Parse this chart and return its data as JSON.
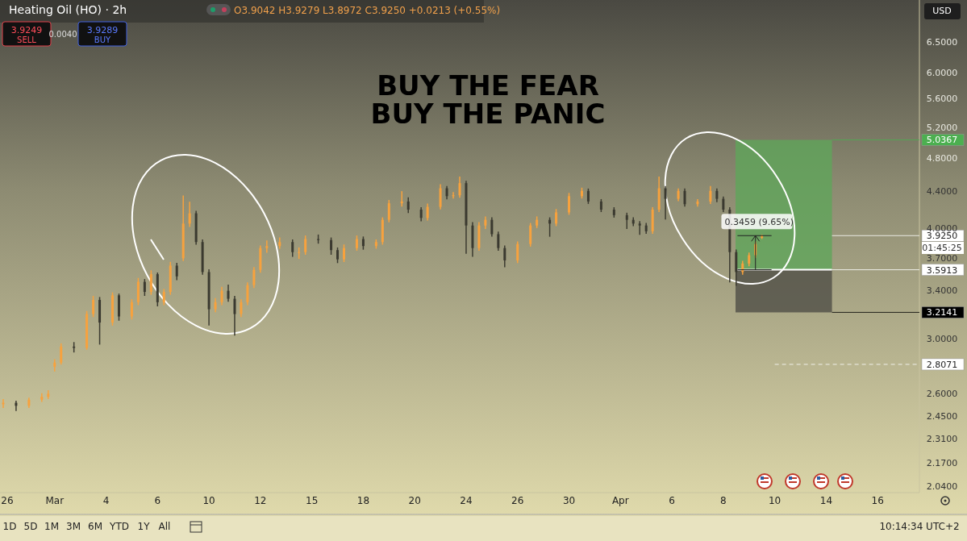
{
  "chart_data": {
    "type": "candlestick",
    "title": "Heating Oil (HO) · 2h",
    "log": true,
    "categories": [
      "26",
      null,
      null,
      null,
      null,
      null,
      null,
      null,
      "Mar",
      null,
      null,
      null,
      null,
      null,
      null,
      null,
      "4",
      null,
      null,
      null,
      null,
      null,
      null,
      null,
      "6",
      null,
      null,
      null,
      null,
      null,
      null,
      null,
      "10",
      null,
      null,
      null,
      null,
      null,
      null,
      null,
      "12",
      null,
      null,
      null,
      null,
      null,
      null,
      null,
      "15",
      null,
      null,
      null,
      null,
      null,
      null,
      null,
      "18",
      null,
      null,
      null,
      null,
      null,
      null,
      null,
      "20",
      null,
      null,
      null,
      null,
      null,
      null,
      null,
      "24",
      null,
      null,
      null,
      null,
      null,
      null,
      null,
      "26",
      null,
      null,
      null,
      null,
      null,
      null,
      null,
      "30",
      null,
      null,
      null,
      null,
      null,
      null,
      null,
      "Apr",
      null,
      null,
      null,
      null,
      null,
      null,
      null,
      "6",
      null,
      null,
      null,
      null,
      null,
      null,
      null,
      "8",
      null,
      null,
      null,
      null,
      null,
      null,
      null,
      "10",
      null,
      null,
      null,
      null,
      null,
      null,
      null,
      "14",
      null,
      null,
      null,
      null,
      null,
      null,
      null,
      "16",
      null,
      null,
      null,
      null,
      null,
      null
    ],
    "ohlc": [
      [
        2.53,
        2.56,
        2.51,
        2.54
      ],
      null,
      [
        2.54,
        2.55,
        2.49,
        2.52
      ],
      null,
      [
        2.52,
        2.57,
        2.51,
        2.56
      ],
      null,
      [
        2.56,
        2.6,
        2.55,
        2.58
      ],
      [
        2.58,
        2.62,
        2.57,
        2.6
      ],
      [
        2.79,
        2.84,
        2.76,
        2.82
      ],
      [
        2.82,
        2.96,
        2.81,
        2.94
      ],
      null,
      [
        2.94,
        2.97,
        2.9,
        2.93
      ],
      null,
      [
        2.93,
        3.22,
        2.92,
        3.2
      ],
      [
        3.2,
        3.35,
        3.18,
        3.32
      ],
      [
        3.32,
        3.34,
        2.96,
        3.13
      ],
      null,
      [
        3.13,
        3.38,
        3.11,
        3.36
      ],
      [
        3.36,
        3.37,
        3.15,
        3.18
      ],
      null,
      [
        3.18,
        3.32,
        3.16,
        3.3
      ],
      [
        3.3,
        3.51,
        3.28,
        3.48
      ],
      [
        3.48,
        3.5,
        3.36,
        3.39
      ],
      [
        3.39,
        3.58,
        3.37,
        3.55
      ],
      [
        3.55,
        3.56,
        3.27,
        3.3
      ],
      [
        3.3,
        3.41,
        3.28,
        3.39
      ],
      [
        3.39,
        3.66,
        3.37,
        3.63
      ],
      [
        3.63,
        3.65,
        3.5,
        3.53
      ],
      [
        3.7,
        4.35,
        3.68,
        4.05
      ],
      [
        4.05,
        4.28,
        4.02,
        4.16
      ],
      [
        4.16,
        4.18,
        3.84,
        3.86
      ],
      [
        3.86,
        3.88,
        3.55,
        3.57
      ],
      [
        3.57,
        3.59,
        3.11,
        3.24
      ],
      [
        3.24,
        3.33,
        3.22,
        3.3
      ],
      [
        3.3,
        3.43,
        3.28,
        3.4
      ],
      [
        3.4,
        3.45,
        3.31,
        3.33
      ],
      [
        3.33,
        3.35,
        3.03,
        3.2
      ],
      [
        3.2,
        3.32,
        3.18,
        3.3
      ],
      [
        3.3,
        3.47,
        3.28,
        3.45
      ],
      [
        3.45,
        3.61,
        3.43,
        3.59
      ],
      [
        3.59,
        3.82,
        3.57,
        3.8
      ],
      [
        3.8,
        3.87,
        3.76,
        3.82
      ],
      null,
      [
        3.82,
        3.9,
        3.8,
        3.86
      ],
      null,
      [
        3.86,
        3.88,
        3.72,
        3.76
      ],
      [
        3.76,
        3.8,
        3.7,
        3.76
      ],
      [
        3.76,
        3.92,
        3.74,
        3.89
      ],
      null,
      [
        3.89,
        3.93,
        3.85,
        3.88
      ],
      null,
      [
        3.88,
        3.9,
        3.74,
        3.78
      ],
      [
        3.78,
        3.8,
        3.66,
        3.69
      ],
      [
        3.69,
        3.83,
        3.67,
        3.8
      ],
      null,
      [
        3.8,
        3.92,
        3.78,
        3.89
      ],
      [
        3.89,
        3.91,
        3.79,
        3.82
      ],
      null,
      [
        3.82,
        3.88,
        3.8,
        3.86
      ],
      [
        3.86,
        4.11,
        3.84,
        4.09
      ],
      [
        4.09,
        4.3,
        4.07,
        4.27
      ],
      null,
      [
        4.27,
        4.4,
        4.24,
        4.29
      ],
      [
        4.29,
        4.33,
        4.17,
        4.2
      ],
      null,
      [
        4.2,
        4.22,
        4.08,
        4.11
      ],
      [
        4.11,
        4.26,
        4.09,
        4.23
      ],
      null,
      [
        4.23,
        4.48,
        4.21,
        4.44
      ],
      [
        4.44,
        4.46,
        4.32,
        4.35
      ],
      [
        4.35,
        4.39,
        4.33,
        4.36
      ],
      [
        4.36,
        4.57,
        4.34,
        4.5
      ],
      [
        4.5,
        4.52,
        3.75,
        4.03
      ],
      [
        4.03,
        4.06,
        3.72,
        3.8
      ],
      [
        3.8,
        4.06,
        3.78,
        4.03
      ],
      [
        4.03,
        4.12,
        4,
        4.09
      ],
      [
        4.09,
        4.11,
        3.92,
        3.94
      ],
      [
        3.94,
        3.96,
        3.78,
        3.8
      ],
      [
        3.8,
        3.82,
        3.62,
        3.68
      ],
      null,
      [
        3.68,
        3.86,
        3.66,
        3.84
      ],
      null,
      [
        3.84,
        4.05,
        3.82,
        4.03
      ],
      [
        4.03,
        4.12,
        4.01,
        4.09
      ],
      null,
      [
        4.09,
        4.11,
        3.92,
        4.05
      ],
      [
        4.05,
        4.2,
        4.03,
        4.17
      ],
      null,
      [
        4.17,
        4.38,
        4.15,
        4.35
      ],
      null,
      [
        4.35,
        4.44,
        4.33,
        4.41
      ],
      [
        4.41,
        4.43,
        4.27,
        4.29
      ],
      null,
      [
        4.29,
        4.31,
        4.18,
        4.2
      ],
      null,
      [
        4.2,
        4.22,
        4.12,
        4.14
      ],
      null,
      [
        4.14,
        4.16,
        4,
        4.09
      ],
      [
        4.09,
        4.11,
        4.03,
        4.05
      ],
      [
        4.05,
        4.07,
        3.94,
        4.03
      ],
      [
        4.03,
        4.05,
        3.95,
        3.97
      ],
      [
        3.97,
        4.22,
        3.95,
        4.2
      ],
      [
        4.2,
        4.57,
        4.18,
        4.44
      ],
      [
        4.44,
        4.46,
        4.1,
        4.32
      ],
      null,
      [
        4.32,
        4.43,
        4.3,
        4.41
      ],
      [
        4.41,
        4.43,
        4.24,
        4.26
      ],
      null,
      [
        4.26,
        4.31,
        4.24,
        4.29
      ],
      null,
      [
        4.29,
        4.46,
        4.27,
        4.41
      ],
      [
        4.41,
        4.43,
        4.29,
        4.32
      ],
      [
        4.32,
        4.34,
        4.18,
        4.2
      ],
      [
        4.2,
        4.22,
        3.48,
        3.76
      ],
      [
        3.76,
        3.78,
        3.45,
        3.57
      ],
      [
        3.57,
        3.67,
        3.55,
        3.65
      ],
      [
        3.65,
        3.75,
        3.63,
        3.73
      ],
      [
        3.73,
        3.86,
        3.71,
        3.84
      ],
      [
        3.9042,
        3.9279,
        3.8972,
        3.925
      ],
      null,
      null,
      null,
      null,
      null,
      null,
      null,
      null,
      null,
      null,
      null,
      null,
      null,
      null,
      null,
      null,
      null,
      null,
      null,
      null,
      null,
      null,
      null,
      null
    ],
    "ylim": [
      2.01,
      7.25
    ],
    "yticks": [
      {
        "value": 2.04,
        "label": "2.0400"
      },
      {
        "value": 2.17,
        "label": "2.1700"
      },
      {
        "value": 2.31,
        "label": "2.3100"
      },
      {
        "value": 2.45,
        "label": "2.4500"
      },
      {
        "value": 2.6,
        "label": "2.6000"
      },
      {
        "value": 3,
        "label": "3.0000"
      },
      {
        "value": 3.4,
        "label": "3.4000"
      },
      {
        "value": 3.7,
        "label": "3.7000"
      },
      {
        "value": 4,
        "label": "4.0000"
      },
      {
        "value": 4.4,
        "label": "4.4000"
      },
      {
        "value": 4.8,
        "label": "4.8000"
      },
      {
        "value": 5.2,
        "label": "5.2000"
      },
      {
        "value": 5.6,
        "label": "5.6000"
      },
      {
        "value": 6,
        "label": "6.0000"
      },
      {
        "value": 6.5,
        "label": "6.5000"
      }
    ],
    "ref_lines": [
      {
        "axis": "y",
        "value": 5.0367,
        "label": "5.0367",
        "color": "#4caf50"
      },
      {
        "axis": "y",
        "value": 3.925,
        "label": "3.9250",
        "color": "#ffffff"
      },
      {
        "axis": "y",
        "value": 3.5913,
        "label": "3.5913",
        "color": "#ffffff"
      },
      {
        "axis": "y",
        "value": 3.2141,
        "label": "3.2141",
        "color": "#000000"
      },
      {
        "axis": "y",
        "value": 2.8071,
        "label": "2.8071",
        "color": "#ffffff",
        "line_style": "dashed"
      }
    ],
    "annotations": [
      "BUY THE FEAR",
      "BUY THE PANIC",
      "O3.9042 H3.9279 L3.8972 C3.9250 +0.0213 (+0.55%)",
      "3.9249",
      "SELL",
      "0.0040",
      "3.9289",
      "BUY",
      "USD",
      "1D",
      "5D",
      "1M",
      "3M",
      "6M",
      "YTD",
      "1Y",
      "All",
      "10:14:34 UTC+2",
      "01:45:25",
      {
        "text": "0.3459 (9.65%)",
        "y": 3.925
      }
    ]
  }
}
